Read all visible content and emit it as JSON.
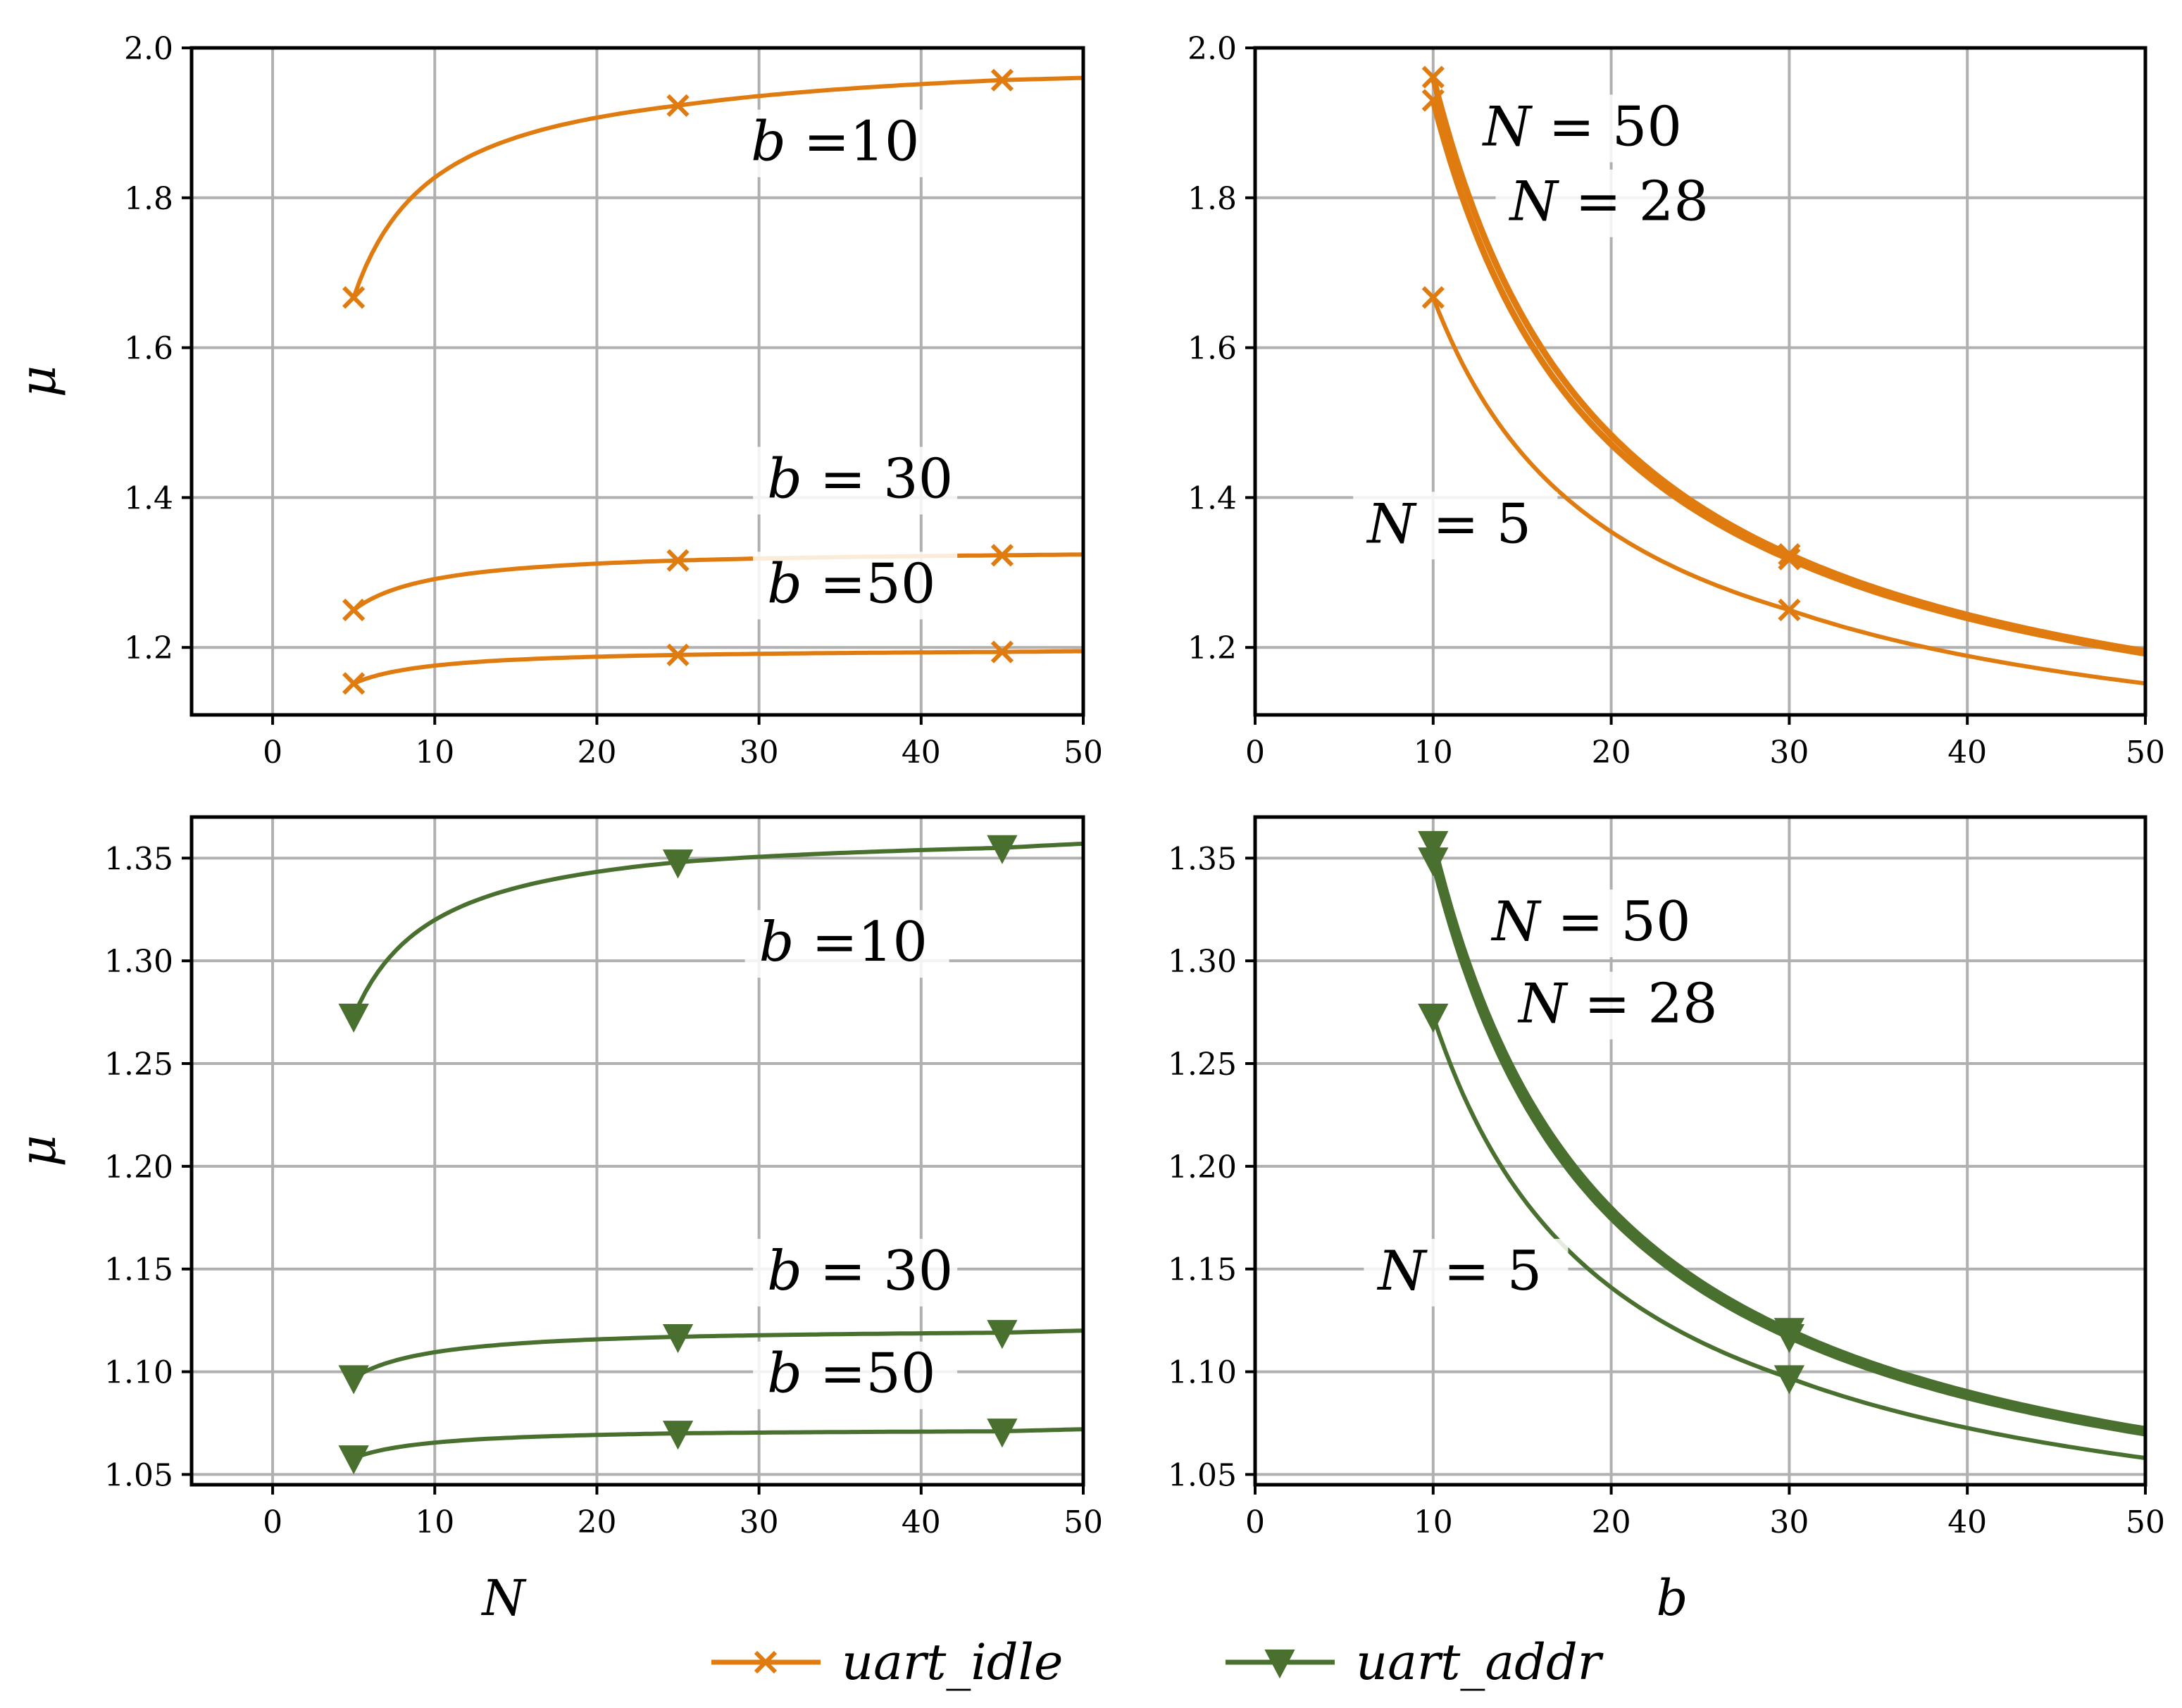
{
  "colors": {
    "uart_idle": "#e07b10",
    "uart_addr": "#4a7030"
  },
  "legend": [
    {
      "name": "uart_idle",
      "label": "uart_idle",
      "marker": "x",
      "color": "#e07b10"
    },
    {
      "name": "uart_addr",
      "label": "uart_addr",
      "marker": "triangle-down",
      "color": "#4a7030"
    }
  ],
  "chart_data": [
    {
      "id": "top-left",
      "type": "line",
      "xlabel": "",
      "ylabel": "μ",
      "xlim": [
        -5,
        50
      ],
      "ylim": [
        1.11,
        2.0
      ],
      "xticks": [
        0,
        10,
        20,
        30,
        40,
        50
      ],
      "yticks": [
        1.2,
        1.4,
        1.6,
        1.8,
        2.0
      ],
      "ytick_labels": [
        "1.2",
        "1.4",
        "1.6",
        "1.8",
        "2.0"
      ],
      "marker": "x",
      "color": "#e07b10",
      "series": [
        {
          "label": "b =10",
          "label_pos": [
            29.5,
            1.85
          ],
          "x": [
            5,
            25,
            45,
            50
          ],
          "y": [
            1.667,
            1.923,
            1.957,
            1.96
          ],
          "markers_at": [
            5,
            25,
            45
          ]
        },
        {
          "label": "b = 30",
          "label_pos": [
            30.5,
            1.4
          ],
          "x": [
            5,
            25,
            45,
            50
          ],
          "y": [
            1.25,
            1.316,
            1.323,
            1.324
          ],
          "markers_at": [
            5,
            25,
            45
          ]
        },
        {
          "label": "b =50",
          "label_pos": [
            30.5,
            1.26
          ],
          "x": [
            5,
            25,
            45,
            50
          ],
          "y": [
            1.152,
            1.19,
            1.194,
            1.195
          ],
          "markers_at": [
            5,
            25,
            45
          ]
        }
      ]
    },
    {
      "id": "top-right",
      "type": "line",
      "xlabel": "",
      "ylabel": "",
      "xlim": [
        0,
        50
      ],
      "ylim": [
        1.11,
        2.0
      ],
      "xticks": [
        0,
        10,
        20,
        30,
        40,
        50
      ],
      "yticks": [
        1.2,
        1.4,
        1.6,
        1.8,
        2.0
      ],
      "ytick_labels": [
        "1.2",
        "1.4",
        "1.6",
        "1.8",
        "2.0"
      ],
      "marker": "x",
      "color": "#e07b10",
      "series": [
        {
          "label": "N = 50",
          "label_pos": [
            12.8,
            1.87
          ],
          "x": [
            10,
            30,
            50
          ],
          "y": [
            1.961,
            1.324,
            1.195
          ],
          "markers_at": [
            10,
            30
          ]
        },
        {
          "label": "N = 28",
          "label_pos": [
            14.3,
            1.77
          ],
          "x": [
            10,
            30,
            50
          ],
          "y": [
            1.93,
            1.318,
            1.192
          ],
          "markers_at": [
            10,
            30
          ]
        },
        {
          "label": "N = 5",
          "label_pos": [
            6.3,
            1.34
          ],
          "x": [
            10,
            30,
            50
          ],
          "y": [
            1.667,
            1.25,
            1.152
          ],
          "markers_at": [
            10,
            30
          ]
        }
      ]
    },
    {
      "id": "bottom-left",
      "type": "line",
      "xlabel": "N",
      "ylabel": "μ",
      "xlim": [
        -5,
        50
      ],
      "ylim": [
        1.045,
        1.37
      ],
      "xticks": [
        0,
        10,
        20,
        30,
        40,
        50
      ],
      "yticks": [
        1.05,
        1.1,
        1.15,
        1.2,
        1.25,
        1.3,
        1.35
      ],
      "ytick_labels": [
        "1.05",
        "1.10",
        "1.15",
        "1.20",
        "1.25",
        "1.30",
        "1.35"
      ],
      "marker": "triangle-down",
      "color": "#4a7030",
      "series": [
        {
          "label": "b =10",
          "label_pos": [
            30,
            1.3
          ],
          "x": [
            5,
            25,
            45,
            50
          ],
          "y": [
            1.273,
            1.348,
            1.355,
            1.357
          ],
          "markers_at": [
            5,
            25,
            45
          ]
        },
        {
          "label": "b = 30",
          "label_pos": [
            30.5,
            1.14
          ],
          "x": [
            5,
            25,
            45,
            50
          ],
          "y": [
            1.097,
            1.117,
            1.119,
            1.12
          ],
          "markers_at": [
            5,
            25,
            45
          ]
        },
        {
          "label": "b =50",
          "label_pos": [
            30.5,
            1.09
          ],
          "x": [
            5,
            25,
            45,
            50
          ],
          "y": [
            1.058,
            1.07,
            1.071,
            1.072
          ],
          "markers_at": [
            5,
            25,
            45
          ]
        }
      ]
    },
    {
      "id": "bottom-right",
      "type": "line",
      "xlabel": "b",
      "ylabel": "",
      "xlim": [
        0,
        50
      ],
      "ylim": [
        1.045,
        1.37
      ],
      "xticks": [
        0,
        10,
        20,
        30,
        40,
        50
      ],
      "yticks": [
        1.05,
        1.1,
        1.15,
        1.2,
        1.25,
        1.3,
        1.35
      ],
      "ytick_labels": [
        "1.05",
        "1.10",
        "1.15",
        "1.20",
        "1.25",
        "1.30",
        "1.35"
      ],
      "marker": "triangle-down",
      "color": "#4a7030",
      "series": [
        {
          "label": "N = 50",
          "label_pos": [
            13.3,
            1.31
          ],
          "x": [
            10,
            30,
            50
          ],
          "y": [
            1.357,
            1.12,
            1.072
          ],
          "markers_at": [
            10,
            30
          ]
        },
        {
          "label": "N = 28",
          "label_pos": [
            14.8,
            1.27
          ],
          "x": [
            10,
            30,
            50
          ],
          "y": [
            1.349,
            1.117,
            1.07
          ],
          "markers_at": [
            10,
            30
          ]
        },
        {
          "label": "N = 5",
          "label_pos": [
            6.9,
            1.14
          ],
          "x": [
            10,
            30,
            50
          ],
          "y": [
            1.273,
            1.097,
            1.058
          ],
          "markers_at": [
            10,
            30
          ]
        }
      ]
    }
  ]
}
